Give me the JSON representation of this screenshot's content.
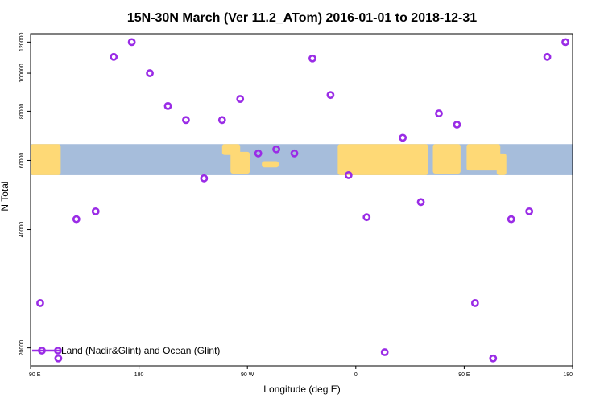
{
  "chart_data": {
    "type": "scatter",
    "title": "15N-30N March (Ver 11.2_ATom)   2016-01-01 to 2018-12-31",
    "xlabel": "Longitude (deg E)",
    "ylabel": "N Total",
    "xlim": [
      90,
      540
    ],
    "ylim": [
      18000,
      126000
    ],
    "y_scale": "log",
    "x_ticks": [
      {
        "value": 90,
        "label": "90 E"
      },
      {
        "value": 180,
        "label": "180"
      },
      {
        "value": 270,
        "label": "90 W"
      },
      {
        "value": 360,
        "label": "0"
      },
      {
        "value": 450,
        "label": "90 E"
      },
      {
        "value": 540,
        "label": "180"
      }
    ],
    "y_ticks": [
      {
        "value": 20000,
        "label": "20000"
      },
      {
        "value": 40000,
        "label": "40000"
      },
      {
        "value": 60000,
        "label": "60000"
      },
      {
        "value": 80000,
        "label": "80000"
      },
      {
        "value": 100000,
        "label": "100000"
      },
      {
        "value": 120000,
        "label": "120000"
      }
    ],
    "map_strip": {
      "lat_range": "15N-30N",
      "y_range": [
        55000,
        66000
      ],
      "colors": {
        "ocean": "#a6bddb",
        "land": "#fed976"
      }
    },
    "series": [
      {
        "name": "Land (Nadir&Glint) and Ocean (Glint)",
        "color": "#9a2ce6",
        "points": [
          {
            "x": 98,
            "y": 26000
          },
          {
            "x": 113,
            "y": 18800
          },
          {
            "x": 128,
            "y": 42500
          },
          {
            "x": 144,
            "y": 44500
          },
          {
            "x": 159,
            "y": 110000
          },
          {
            "x": 174,
            "y": 120000
          },
          {
            "x": 189,
            "y": 100000
          },
          {
            "x": 204,
            "y": 82500
          },
          {
            "x": 219,
            "y": 76000
          },
          {
            "x": 234,
            "y": 54000
          },
          {
            "x": 249,
            "y": 76000
          },
          {
            "x": 264,
            "y": 86000
          },
          {
            "x": 279,
            "y": 62500
          },
          {
            "x": 294,
            "y": 64000
          },
          {
            "x": 309,
            "y": 62500
          },
          {
            "x": 324,
            "y": 109000
          },
          {
            "x": 339,
            "y": 88000
          },
          {
            "x": 354,
            "y": 55000
          },
          {
            "x": 369,
            "y": 43000
          },
          {
            "x": 384,
            "y": 19500
          },
          {
            "x": 399,
            "y": 68500
          },
          {
            "x": 414,
            "y": 47000
          },
          {
            "x": 429,
            "y": 79000
          },
          {
            "x": 444,
            "y": 74000
          },
          {
            "x": 459,
            "y": 26000
          },
          {
            "x": 474,
            "y": 18800
          },
          {
            "x": 489,
            "y": 42500
          },
          {
            "x": 504,
            "y": 44500
          },
          {
            "x": 519,
            "y": 110000
          },
          {
            "x": 534,
            "y": 120000
          }
        ]
      }
    ],
    "legend": {
      "position": "bottom-left",
      "entries": [
        "Land (Nadir&Glint) and Ocean (Glint)"
      ]
    }
  }
}
